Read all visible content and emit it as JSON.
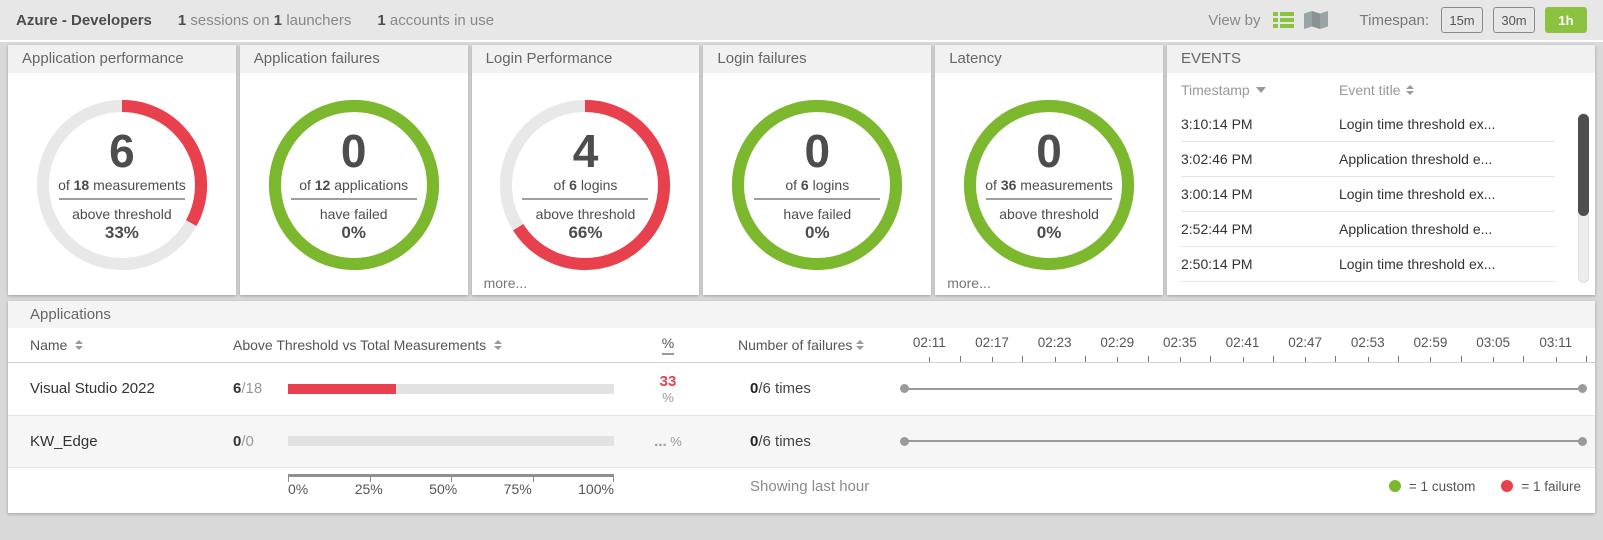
{
  "colors": {
    "green": "#7cb82e",
    "green_light": "#8bc341",
    "red": "#e8414d"
  },
  "topbar": {
    "title": "Azure - Developers",
    "stat_sessions_value": "1",
    "stat_sessions_label": "sessions on",
    "stat_launchers_value": "1",
    "stat_launchers_label": "launchers",
    "stat_accounts_value": "1",
    "stat_accounts_label": "accounts in use",
    "view_by_label": "View by",
    "timespan_label": "Timespan:",
    "timespan_options": [
      {
        "label": "15m",
        "selected": false
      },
      {
        "label": "30m",
        "selected": false
      },
      {
        "label": "1h",
        "selected": true
      }
    ]
  },
  "gauges": [
    {
      "title": "Application performance",
      "value": "6",
      "of_label": "of",
      "total": "18",
      "unit": "measurements",
      "subtitle": "above threshold",
      "percent_label": "33%",
      "ring_percent": 33,
      "ring_color": "#e8414d"
    },
    {
      "title": "Application failures",
      "value": "0",
      "of_label": "of",
      "total": "12",
      "unit": "applications",
      "subtitle": "have failed",
      "percent_label": "0%",
      "ring_percent": 100,
      "ring_color": "#7cb82e"
    },
    {
      "title": "Login Performance",
      "value": "4",
      "of_label": "of",
      "total": "6",
      "unit": "logins",
      "subtitle": "above threshold",
      "percent_label": "66%",
      "ring_percent": 66,
      "ring_color": "#e8414d",
      "more_label": "more..."
    },
    {
      "title": "Login failures",
      "value": "0",
      "of_label": "of",
      "total": "6",
      "unit": "logins",
      "subtitle": "have failed",
      "percent_label": "0%",
      "ring_percent": 100,
      "ring_color": "#7cb82e"
    },
    {
      "title": "Latency",
      "value": "0",
      "of_label": "of",
      "total": "36",
      "unit": "measurements",
      "subtitle": "above threshold",
      "percent_label": "0%",
      "ring_percent": 100,
      "ring_color": "#7cb82e",
      "more_label": "more..."
    }
  ],
  "events": {
    "title": "EVENTS",
    "col_timestamp": "Timestamp",
    "col_title": "Event title",
    "rows": [
      {
        "timestamp": "3:10:14 PM",
        "title": "Login time threshold ex..."
      },
      {
        "timestamp": "3:02:46 PM",
        "title": "Application threshold e..."
      },
      {
        "timestamp": "3:00:14 PM",
        "title": "Login time threshold ex..."
      },
      {
        "timestamp": "2:52:44 PM",
        "title": "Application threshold e..."
      },
      {
        "timestamp": "2:50:14 PM",
        "title": "Login time threshold ex..."
      }
    ]
  },
  "applications": {
    "title": "Applications",
    "col_name": "Name",
    "col_threshold": "Above Threshold vs Total Measurements",
    "col_percent": "%",
    "col_failures": "Number of failures",
    "rows": [
      {
        "name": "Visual Studio 2022",
        "above": "6",
        "total_rest": "/18",
        "bar_percent": 33,
        "percent_main": "33",
        "percent_unit": "%",
        "failures_bold": "0",
        "failures_rest": "/6 times"
      },
      {
        "name": "KW_Edge",
        "above": "0",
        "total_rest": "/0",
        "bar_percent": 0,
        "percent_main": "...",
        "percent_unit": " %",
        "failures_bold": "0",
        "failures_rest": "/6 times"
      }
    ],
    "axis_labels": [
      "0%",
      "25%",
      "50%",
      "75%",
      "100%"
    ],
    "timeline_labels": [
      "02:11",
      "02:17",
      "02:23",
      "02:29",
      "02:35",
      "02:41",
      "02:47",
      "02:53",
      "02:59",
      "03:05",
      "03:11"
    ],
    "footer": "Showing last hour",
    "legend": [
      {
        "color": "#7cb82e",
        "label": "= 1 custom"
      },
      {
        "color": "#e8414d",
        "label": "= 1 failure"
      }
    ]
  }
}
